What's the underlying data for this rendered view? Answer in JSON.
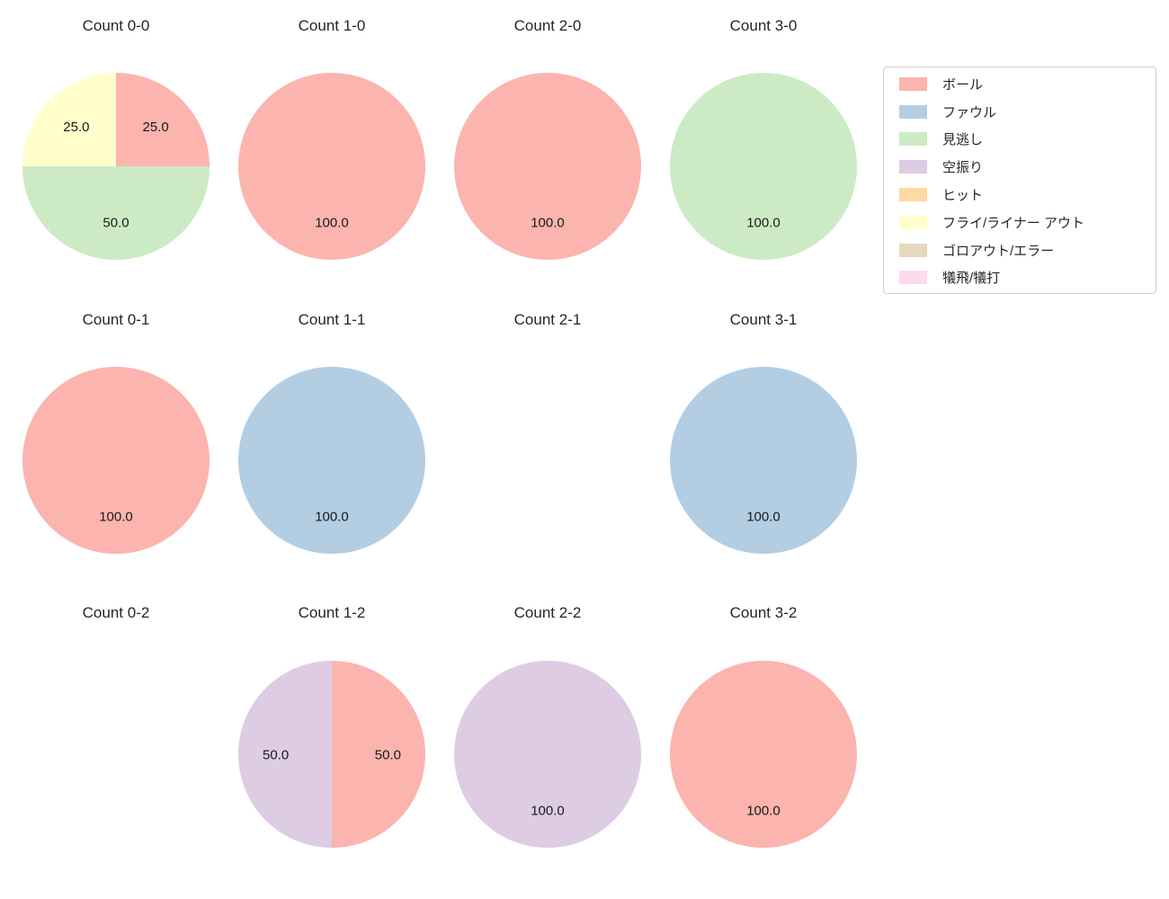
{
  "figure": {
    "background_color": "#ffffff",
    "text_color": "#262626"
  },
  "chart_data": {
    "type": "pie",
    "title": "",
    "layout": {
      "grid": "3 rows x 4 columns of pie subplots",
      "legend_position": "upper right",
      "slice_direction": "clockwise from 12 o'clock",
      "value_unit": "percent"
    },
    "legend": {
      "entries": [
        {
          "id": "ball",
          "label": "ボール",
          "color": "#FBB4AE"
        },
        {
          "id": "foul",
          "label": "ファウル",
          "color": "#B3CDE3"
        },
        {
          "id": "called-strike",
          "label": "見逃し",
          "color": "#CCEBC5"
        },
        {
          "id": "swinging-strike",
          "label": "空振り",
          "color": "#DECBE4"
        },
        {
          "id": "hit",
          "label": "ヒット",
          "color": "#FED9A6"
        },
        {
          "id": "fly-liner-out",
          "label": "フライ/ライナー アウト",
          "color": "#FFFFCC"
        },
        {
          "id": "groundout-error",
          "label": "ゴロアウト/エラー",
          "color": "#E5D8BD"
        },
        {
          "id": "sacrifice-fly-bunt",
          "label": "犠飛/犠打",
          "color": "#FDDAEC"
        }
      ]
    },
    "subplots": [
      {
        "title": "Count 0-0",
        "slices": [
          {
            "category": "ボール",
            "id": "ball",
            "value": 25.0,
            "label": "25.0"
          },
          {
            "category": "見逃し",
            "id": "called-strike",
            "value": 50.0,
            "label": "50.0"
          },
          {
            "category": "フライ/ライナー アウト",
            "id": "fly-liner-out",
            "value": 25.0,
            "label": "25.0"
          }
        ]
      },
      {
        "title": "Count 1-0",
        "slices": [
          {
            "category": "ボール",
            "id": "ball",
            "value": 100.0,
            "label": "100.0"
          }
        ]
      },
      {
        "title": "Count 2-0",
        "slices": [
          {
            "category": "ボール",
            "id": "ball",
            "value": 100.0,
            "label": "100.0"
          }
        ]
      },
      {
        "title": "Count 3-0",
        "slices": [
          {
            "category": "見逃し",
            "id": "called-strike",
            "value": 100.0,
            "label": "100.0"
          }
        ]
      },
      {
        "title": "Count 0-1",
        "slices": [
          {
            "category": "ボール",
            "id": "ball",
            "value": 100.0,
            "label": "100.0"
          }
        ]
      },
      {
        "title": "Count 1-1",
        "slices": [
          {
            "category": "ファウル",
            "id": "foul",
            "value": 100.0,
            "label": "100.0"
          }
        ]
      },
      {
        "title": "Count 2-1",
        "slices": []
      },
      {
        "title": "Count 3-1",
        "slices": [
          {
            "category": "ファウル",
            "id": "foul",
            "value": 100.0,
            "label": "100.0"
          }
        ]
      },
      {
        "title": "Count 0-2",
        "slices": []
      },
      {
        "title": "Count 1-2",
        "slices": [
          {
            "category": "ボール",
            "id": "ball",
            "value": 50.0,
            "label": "50.0"
          },
          {
            "category": "空振り",
            "id": "swinging-strike",
            "value": 50.0,
            "label": "50.0"
          }
        ]
      },
      {
        "title": "Count 2-2",
        "slices": [
          {
            "category": "空振り",
            "id": "swinging-strike",
            "value": 100.0,
            "label": "100.0"
          }
        ]
      },
      {
        "title": "Count 3-2",
        "slices": [
          {
            "category": "ボール",
            "id": "ball",
            "value": 100.0,
            "label": "100.0"
          }
        ]
      }
    ]
  }
}
